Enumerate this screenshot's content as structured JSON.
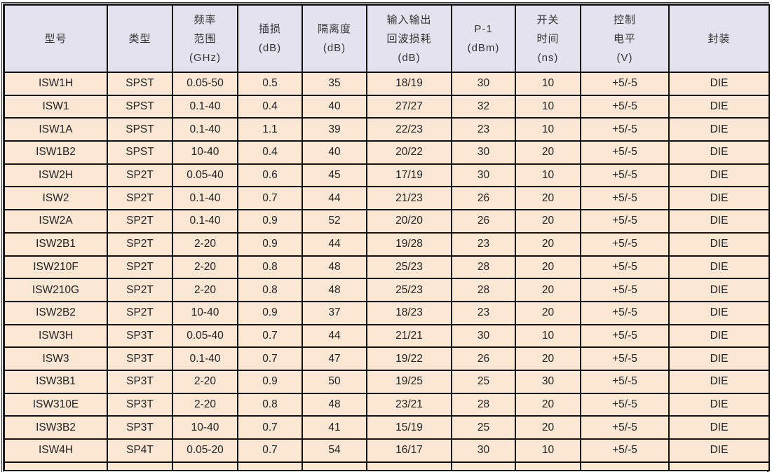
{
  "table": {
    "headers": [
      [
        "型号"
      ],
      [
        "类型"
      ],
      [
        "频率",
        "范围",
        "(GHz)"
      ],
      [
        "插损",
        "(dB)"
      ],
      [
        "隔离度",
        "(dB)"
      ],
      [
        "输入输出",
        "回波损耗",
        "(dB)"
      ],
      [
        "P-1",
        "(dBm)"
      ],
      [
        "开关",
        "时间",
        "(ns)"
      ],
      [
        "控制",
        "电平",
        "(V)"
      ],
      [
        "封装"
      ]
    ],
    "rows": [
      [
        "ISW1H",
        "SPST",
        "0.05-50",
        "0.5",
        "35",
        "18/19",
        "30",
        "10",
        "+5/-5",
        "DIE"
      ],
      [
        "ISW1",
        "SPST",
        "0.1-40",
        "0.4",
        "40",
        "27/27",
        "32",
        "10",
        "+5/-5",
        "DIE"
      ],
      [
        "ISW1A",
        "SPST",
        "0.1-40",
        "1.1",
        "39",
        "22/23",
        "23",
        "10",
        "+5/-5",
        "DIE"
      ],
      [
        "ISW1B2",
        "SPST",
        "10-40",
        "0.4",
        "40",
        "20/22",
        "30",
        "20",
        "+5/-5",
        "DIE"
      ],
      [
        "ISW2H",
        "SP2T",
        "0.05-40",
        "0.6",
        "45",
        "17/19",
        "30",
        "10",
        "+5/-5",
        "DIE"
      ],
      [
        "ISW2",
        "SP2T",
        "0.1-40",
        "0.7",
        "44",
        "21/23",
        "26",
        "20",
        "+5/-5",
        "DIE"
      ],
      [
        "ISW2A",
        "SP2T",
        "0.1-40",
        "0.9",
        "52",
        "20/20",
        "26",
        "20",
        "+5/-5",
        "DIE"
      ],
      [
        "ISW2B1",
        "SP2T",
        "2-20",
        "0.9",
        "44",
        "19/28",
        "23",
        "20",
        "+5/-5",
        "DIE"
      ],
      [
        "ISW210F",
        "SP2T",
        "2-20",
        "0.8",
        "48",
        "25/23",
        "28",
        "20",
        "+5/-5",
        "DIE"
      ],
      [
        "ISW210G",
        "SP2T",
        "2-20",
        "0.8",
        "48",
        "25/23",
        "28",
        "20",
        "+5/-5",
        "DIE"
      ],
      [
        "ISW2B2",
        "SP2T",
        "10-40",
        "0.9",
        "37",
        "18/23",
        "23",
        "20",
        "+5/-5",
        "DIE"
      ],
      [
        "ISW3H",
        "SP3T",
        "0.05-40",
        "0.7",
        "44",
        "21/21",
        "30",
        "10",
        "+5/-5",
        "DIE"
      ],
      [
        "ISW3",
        "SP3T",
        "0.1-40",
        "0.7",
        "47",
        "19/22",
        "26",
        "20",
        "+5/-5",
        "DIE"
      ],
      [
        "ISW3B1",
        "SP3T",
        "2-20",
        "0.9",
        "50",
        "19/25",
        "25",
        "30",
        "+5/-5",
        "DIE"
      ],
      [
        "ISW310E",
        "SP3T",
        "2-20",
        "0.8",
        "48",
        "23/21",
        "28",
        "20",
        "+5/-5",
        "DIE"
      ],
      [
        "ISW3B2",
        "SP3T",
        "10-40",
        "0.7",
        "41",
        "15/19",
        "25",
        "20",
        "+5/-5",
        "DIE"
      ],
      [
        "ISW4H",
        "SP4T",
        "0.05-20",
        "0.7",
        "54",
        "16/17",
        "30",
        "10",
        "+5/-5",
        "DIE"
      ]
    ]
  },
  "colors": {
    "header_bg": "#e4e2ee",
    "row_bg": "#fce6d4",
    "border": "#111111"
  }
}
